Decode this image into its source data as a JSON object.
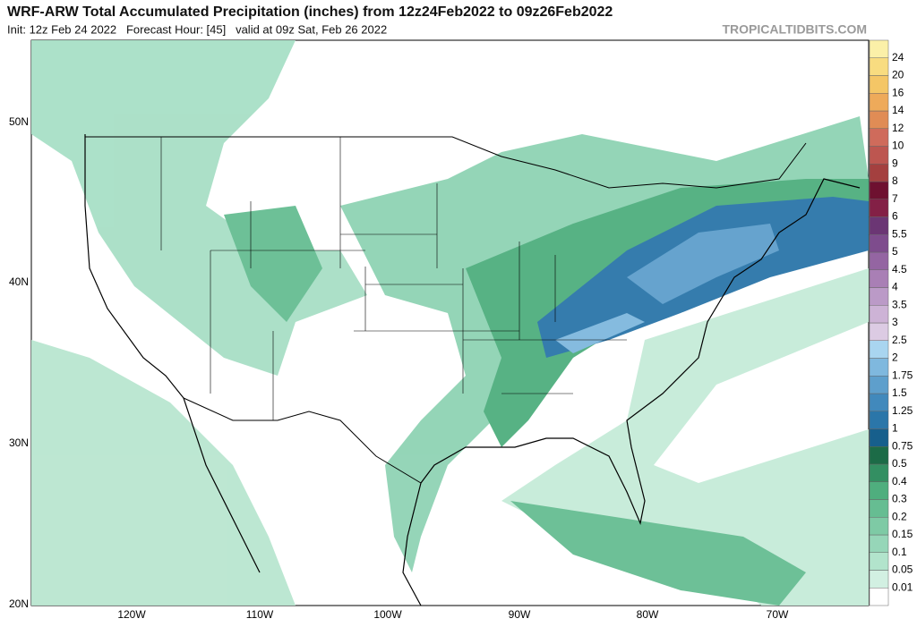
{
  "header": {
    "title": "WRF-ARW Total Accumulated Precipitation (inches) from 12z24Feb2022 to 09z26Feb2022",
    "subtitle": "Init: 12z Feb 24 2022   Forecast Hour: [45]   valid at 09z Sat, Feb 26 2022",
    "watermark": "TROPICALTIDBITS.COM"
  },
  "map": {
    "lat_labels": [
      "50N",
      "40N",
      "30N",
      "20N"
    ],
    "lon_labels": [
      "120W",
      "110W",
      "100W",
      "90W",
      "80W",
      "70W"
    ]
  },
  "colorbar": {
    "labels": [
      "0.01",
      "0.05",
      "0.1",
      "0.15",
      "0.2",
      "0.3",
      "0.4",
      "0.5",
      "0.75",
      "1",
      "1.25",
      "1.5",
      "1.75",
      "2",
      "2.5",
      "3",
      "3.5",
      "4",
      "4.5",
      "5",
      "5.5",
      "6",
      "7",
      "8",
      "9",
      "10",
      "12",
      "14",
      "16",
      "20",
      "24"
    ],
    "colors": [
      "#ffffff",
      "#d2f0e2",
      "#b2e4cc",
      "#96d6b8",
      "#7ecaa5",
      "#66bd92",
      "#4fae7e",
      "#338f62",
      "#1c6b47",
      "#175f8c",
      "#2b76a9",
      "#4189bc",
      "#5e9fcc",
      "#7fb8de",
      "#a9d5f0",
      "#dccbe3",
      "#cdb3d6",
      "#bb9ac7",
      "#a97fb5",
      "#9465a2",
      "#7e4c8d",
      "#6b3674",
      "#832046",
      "#6e1130",
      "#a4403f",
      "#bd5650",
      "#cf6b5b",
      "#e08c55",
      "#eeaa5a",
      "#f4c666",
      "#f8dc80",
      "#fbf0a8"
    ]
  }
}
